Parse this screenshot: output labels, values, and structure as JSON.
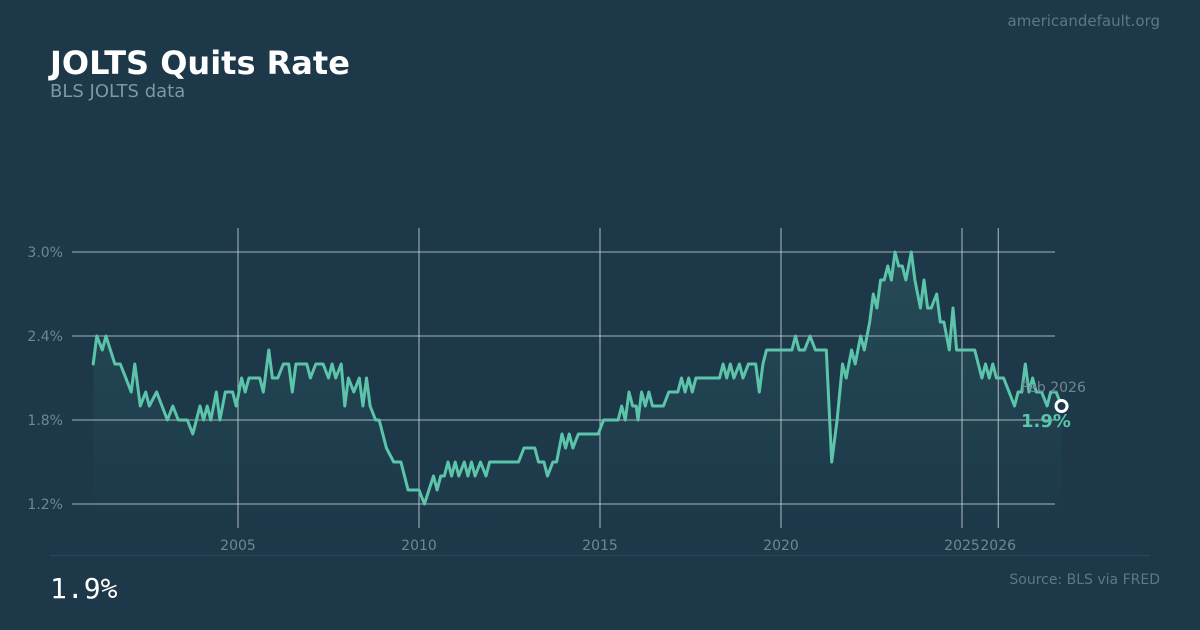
{
  "header": {
    "site": "americandefault.org",
    "title": "JOLTS Quits Rate",
    "subtitle": "BLS JOLTS data"
  },
  "footer": {
    "latest_value": "1.9%",
    "source": "Source: BLS via FRED"
  },
  "colors": {
    "background": "#1c3849",
    "line": "#5cc4aa",
    "grid": "#d7dde0",
    "tick_text": "#6e8893"
  },
  "chart_data": {
    "type": "line",
    "title": "JOLTS Quits Rate",
    "subtitle": "BLS JOLTS data",
    "xlabel": "",
    "ylabel": "",
    "y_ticks": [
      1.2,
      1.8,
      2.4,
      3.0
    ],
    "y_tick_labels": [
      "1.2%",
      "1.8%",
      "2.4%",
      "3.0%"
    ],
    "x_ticks": [
      2005,
      2010,
      2015,
      2020,
      2025,
      2026
    ],
    "x_tick_labels": [
      "2005",
      "2010",
      "2015",
      "2020",
      "2025",
      "2026"
    ],
    "grid": true,
    "area_fill": true,
    "series": [
      {
        "points": [
          [
            2001.0,
            2.2
          ],
          [
            2001.1,
            2.4
          ],
          [
            2001.25,
            2.3
          ],
          [
            2001.35,
            2.4
          ],
          [
            2001.6,
            2.2
          ],
          [
            2001.75,
            2.2
          ],
          [
            2001.9,
            2.1
          ],
          [
            2002.05,
            2.0
          ],
          [
            2002.15,
            2.2
          ],
          [
            2002.3,
            1.9
          ],
          [
            2002.45,
            2.0
          ],
          [
            2002.55,
            1.9
          ],
          [
            2002.75,
            2.0
          ],
          [
            2002.9,
            1.9
          ],
          [
            2003.05,
            1.8
          ],
          [
            2003.2,
            1.9
          ],
          [
            2003.35,
            1.8
          ],
          [
            2003.6,
            1.8
          ],
          [
            2003.75,
            1.7
          ],
          [
            2003.95,
            1.9
          ],
          [
            2004.05,
            1.8
          ],
          [
            2004.15,
            1.9
          ],
          [
            2004.25,
            1.8
          ],
          [
            2004.4,
            2.0
          ],
          [
            2004.5,
            1.8
          ],
          [
            2004.65,
            2.0
          ],
          [
            2004.85,
            2.0
          ],
          [
            2004.95,
            1.9
          ],
          [
            2005.1,
            2.1
          ],
          [
            2005.2,
            2.0
          ],
          [
            2005.3,
            2.1
          ],
          [
            2005.45,
            2.1
          ],
          [
            2005.6,
            2.1
          ],
          [
            2005.7,
            2.0
          ],
          [
            2005.85,
            2.3
          ],
          [
            2005.95,
            2.1
          ],
          [
            2006.1,
            2.1
          ],
          [
            2006.25,
            2.2
          ],
          [
            2006.4,
            2.2
          ],
          [
            2006.5,
            2.0
          ],
          [
            2006.6,
            2.2
          ],
          [
            2006.75,
            2.2
          ],
          [
            2006.9,
            2.2
          ],
          [
            2007.0,
            2.1
          ],
          [
            2007.15,
            2.2
          ],
          [
            2007.35,
            2.2
          ],
          [
            2007.5,
            2.1
          ],
          [
            2007.6,
            2.2
          ],
          [
            2007.7,
            2.1
          ],
          [
            2007.85,
            2.2
          ],
          [
            2007.95,
            1.9
          ],
          [
            2008.05,
            2.1
          ],
          [
            2008.2,
            2.0
          ],
          [
            2008.35,
            2.1
          ],
          [
            2008.45,
            1.9
          ],
          [
            2008.55,
            2.1
          ],
          [
            2008.65,
            1.9
          ],
          [
            2008.8,
            1.8
          ],
          [
            2008.9,
            1.8
          ],
          [
            2009.1,
            1.6
          ],
          [
            2009.3,
            1.5
          ],
          [
            2009.5,
            1.5
          ],
          [
            2009.7,
            1.3
          ],
          [
            2009.85,
            1.3
          ],
          [
            2010.0,
            1.3
          ],
          [
            2010.15,
            1.2
          ],
          [
            2010.4,
            1.4
          ],
          [
            2010.5,
            1.3
          ],
          [
            2010.6,
            1.4
          ],
          [
            2010.7,
            1.4
          ],
          [
            2010.8,
            1.5
          ],
          [
            2010.9,
            1.4
          ],
          [
            2011.0,
            1.5
          ],
          [
            2011.1,
            1.4
          ],
          [
            2011.25,
            1.5
          ],
          [
            2011.35,
            1.4
          ],
          [
            2011.45,
            1.5
          ],
          [
            2011.55,
            1.4
          ],
          [
            2011.7,
            1.5
          ],
          [
            2011.85,
            1.4
          ],
          [
            2011.95,
            1.5
          ],
          [
            2012.1,
            1.5
          ],
          [
            2012.3,
            1.5
          ],
          [
            2012.45,
            1.5
          ],
          [
            2012.6,
            1.5
          ],
          [
            2012.75,
            1.5
          ],
          [
            2012.9,
            1.6
          ],
          [
            2013.05,
            1.6
          ],
          [
            2013.2,
            1.6
          ],
          [
            2013.3,
            1.5
          ],
          [
            2013.45,
            1.5
          ],
          [
            2013.55,
            1.4
          ],
          [
            2013.7,
            1.5
          ],
          [
            2013.8,
            1.5
          ],
          [
            2013.95,
            1.7
          ],
          [
            2014.05,
            1.6
          ],
          [
            2014.15,
            1.7
          ],
          [
            2014.25,
            1.6
          ],
          [
            2014.4,
            1.7
          ],
          [
            2014.6,
            1.7
          ],
          [
            2014.8,
            1.7
          ],
          [
            2014.95,
            1.7
          ],
          [
            2015.1,
            1.8
          ],
          [
            2015.25,
            1.8
          ],
          [
            2015.35,
            1.8
          ],
          [
            2015.5,
            1.8
          ],
          [
            2015.6,
            1.9
          ],
          [
            2015.7,
            1.8
          ],
          [
            2015.8,
            2.0
          ],
          [
            2015.9,
            1.9
          ],
          [
            2016.0,
            1.9
          ],
          [
            2016.05,
            1.8
          ],
          [
            2016.15,
            2.0
          ],
          [
            2016.25,
            1.9
          ],
          [
            2016.35,
            2.0
          ],
          [
            2016.45,
            1.9
          ],
          [
            2016.6,
            1.9
          ],
          [
            2016.75,
            1.9
          ],
          [
            2016.9,
            2.0
          ],
          [
            2017.05,
            2.0
          ],
          [
            2017.15,
            2.0
          ],
          [
            2017.25,
            2.1
          ],
          [
            2017.35,
            2.0
          ],
          [
            2017.45,
            2.1
          ],
          [
            2017.55,
            2.0
          ],
          [
            2017.65,
            2.1
          ],
          [
            2017.75,
            2.1
          ],
          [
            2017.9,
            2.1
          ],
          [
            2018.05,
            2.1
          ],
          [
            2018.2,
            2.1
          ],
          [
            2018.3,
            2.1
          ],
          [
            2018.4,
            2.2
          ],
          [
            2018.5,
            2.1
          ],
          [
            2018.6,
            2.2
          ],
          [
            2018.7,
            2.1
          ],
          [
            2018.85,
            2.2
          ],
          [
            2018.95,
            2.1
          ],
          [
            2019.1,
            2.2
          ],
          [
            2019.2,
            2.2
          ],
          [
            2019.3,
            2.2
          ],
          [
            2019.4,
            2.0
          ],
          [
            2019.5,
            2.2
          ],
          [
            2019.6,
            2.3
          ],
          [
            2019.8,
            2.3
          ],
          [
            2020.0,
            2.3
          ],
          [
            2020.15,
            2.3
          ],
          [
            2020.3,
            2.3
          ],
          [
            2020.4,
            2.4
          ],
          [
            2020.5,
            2.3
          ],
          [
            2020.65,
            2.3
          ],
          [
            2020.8,
            2.4
          ],
          [
            2020.95,
            2.3
          ],
          [
            2021.1,
            2.3
          ],
          [
            2021.25,
            2.3
          ],
          [
            2021.4,
            1.5
          ],
          [
            2021.55,
            1.8
          ],
          [
            2021.7,
            2.2
          ],
          [
            2021.8,
            2.1
          ],
          [
            2021.95,
            2.3
          ],
          [
            2022.05,
            2.2
          ],
          [
            2022.2,
            2.4
          ],
          [
            2022.3,
            2.3
          ],
          [
            2022.45,
            2.5
          ],
          [
            2022.55,
            2.7
          ],
          [
            2022.65,
            2.6
          ],
          [
            2022.75,
            2.8
          ],
          [
            2022.85,
            2.8
          ],
          [
            2022.95,
            2.9
          ],
          [
            2023.05,
            2.8
          ],
          [
            2023.15,
            3.0
          ],
          [
            2023.25,
            2.9
          ],
          [
            2023.35,
            2.9
          ],
          [
            2023.45,
            2.8
          ],
          [
            2023.6,
            3.0
          ],
          [
            2023.7,
            2.8
          ],
          [
            2023.85,
            2.6
          ],
          [
            2023.95,
            2.8
          ],
          [
            2024.05,
            2.6
          ],
          [
            2024.15,
            2.6
          ],
          [
            2024.3,
            2.7
          ],
          [
            2024.4,
            2.5
          ],
          [
            2024.5,
            2.5
          ],
          [
            2024.65,
            2.3
          ],
          [
            2024.75,
            2.6
          ],
          [
            2024.85,
            2.3
          ],
          [
            2024.95,
            2.3
          ],
          [
            2025.15,
            2.3
          ],
          [
            2025.35,
            2.3
          ],
          [
            2025.45,
            2.2
          ],
          [
            2025.55,
            2.1
          ],
          [
            2025.65,
            2.2
          ],
          [
            2025.75,
            2.1
          ],
          [
            2025.85,
            2.2
          ],
          [
            2025.95,
            2.1
          ],
          [
            2026.05,
            2.1
          ],
          [
            2026.15,
            2.1
          ],
          [
            2026.3,
            2.0
          ],
          [
            2026.45,
            1.9
          ],
          [
            2026.55,
            2.0
          ],
          [
            2026.65,
            2.0
          ],
          [
            2026.75,
            2.2
          ],
          [
            2026.85,
            2.0
          ],
          [
            2026.95,
            2.1
          ],
          [
            2027.05,
            2.0
          ],
          [
            2027.2,
            2.0
          ],
          [
            2027.35,
            1.9
          ],
          [
            2027.45,
            2.0
          ],
          [
            2027.6,
            2.0
          ],
          [
            2027.75,
            1.9
          ]
        ]
      }
    ],
    "latest": {
      "label": "Feb 2026",
      "value": 1.9,
      "value_label": "1.9%"
    }
  }
}
